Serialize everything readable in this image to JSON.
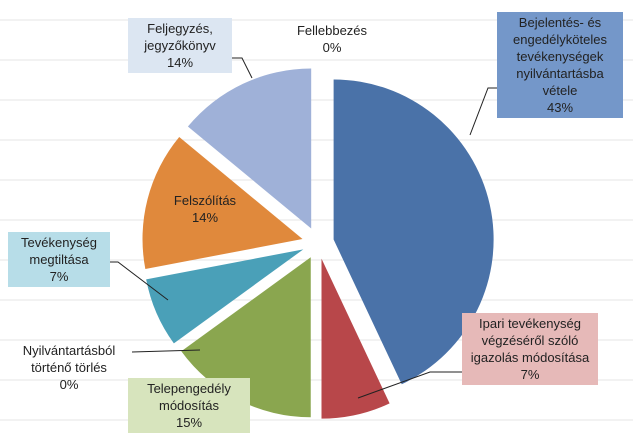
{
  "chart_data": {
    "type": "pie",
    "categories": [
      "Bejelentés- és engedélyköteles tevékenységek nyilvántartásba vétele",
      "Ipari tevékenység végzéséről szóló igazolás módosítása",
      "Telepengedély módosítás",
      "Nyilvántartásból történő törlés",
      "Tevékenység megtiltása",
      "Felszólítás",
      "Feljegyzés, jegyzőkönyv",
      "Fellebbezés"
    ],
    "values": [
      43,
      7,
      15,
      0,
      7,
      14,
      14,
      0
    ],
    "value_labels": [
      "43%",
      "7%",
      "15%",
      "0%",
      "7%",
      "14%",
      "14%",
      "0%"
    ],
    "colors": [
      "#4a72a8",
      "#b8474a",
      "#8aa64f",
      "#7a5e9a",
      "#4aa0b8",
      "#e0893c",
      "#9fb1d8",
      "#c0504d"
    ]
  }
}
